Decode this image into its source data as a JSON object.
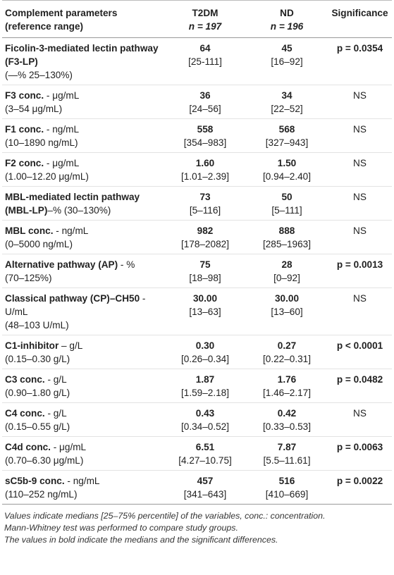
{
  "table": {
    "header": {
      "param": [
        "Complement parameters",
        "(reference range)"
      ],
      "t2dm": [
        "T2DM",
        "n = 197"
      ],
      "nd": [
        "ND",
        "n = 196"
      ],
      "sig": "Significance"
    },
    "rows": [
      {
        "name": "Ficolin-3-mediated lectin pathway (F3-LP)",
        "range": "(—% 25–130%)",
        "t2dm": "64",
        "t2dm_iqr": "[25-111]",
        "nd": "45",
        "nd_iqr": "[16–92]",
        "sig": "p = 0.0354"
      },
      {
        "name": "F3 conc.",
        "unit": " - μg/mL",
        "range": "(3–54 μg/mL)",
        "t2dm": "36",
        "t2dm_iqr": "[24–56]",
        "nd": "34",
        "nd_iqr": "[22–52]",
        "sig": "NS"
      },
      {
        "name": "F1 conc.",
        "unit": " - ng/mL",
        "range": "(10–1890 ng/mL)",
        "t2dm": "558",
        "t2dm_iqr": "[354–983]",
        "nd": "568",
        "nd_iqr": "[327–943]",
        "sig": "NS"
      },
      {
        "name": "F2 conc.",
        "unit": " - μg/mL",
        "range": "(1.00–12.20 μg/mL)",
        "t2dm": "1.60",
        "t2dm_iqr": "[1.01–2.39]",
        "nd": "1.50",
        "nd_iqr": "[0.94–2.40]",
        "sig": "NS"
      },
      {
        "name": "MBL-mediated lectin pathway (MBL-LP)",
        "unit": "–% (30–130%)",
        "t2dm": "73",
        "t2dm_iqr": "[5–116]",
        "nd": "50",
        "nd_iqr": "[5–111]",
        "sig": "NS"
      },
      {
        "name": "MBL conc.",
        "unit": " - ng/mL",
        "range": "(0–5000 ng/mL)",
        "t2dm": "982",
        "t2dm_iqr": "[178–2082]",
        "nd": "888",
        "nd_iqr": "[285–1963]",
        "sig": "NS"
      },
      {
        "name": "Alternative pathway (AP)",
        "unit": " - %",
        "range": "(70–125%)",
        "t2dm": "75",
        "t2dm_iqr": "[18–98]",
        "nd": "28",
        "nd_iqr": "[0–92]",
        "sig": "p = 0.0013"
      },
      {
        "name": "Classical pathway (CP)–CH50",
        "unit": " - U/mL",
        "range": "(48–103 U/mL)",
        "t2dm": "30.00",
        "t2dm_iqr": "[13–63]",
        "nd": "30.00",
        "nd_iqr": "[13–60]",
        "sig": "NS"
      },
      {
        "name": "C1-inhibitor",
        "unit": " – g/L",
        "range": "(0.15–0.30 g/L)",
        "t2dm": "0.30",
        "t2dm_iqr": "[0.26–0.34]",
        "nd": "0.27",
        "nd_iqr": "[0.22–0.31]",
        "sig": "p < 0.0001"
      },
      {
        "name": "C3 conc.",
        "unit": " - g/L",
        "range": "(0.90–1.80 g/L)",
        "t2dm": "1.87",
        "t2dm_iqr": "[1.59–2.18]",
        "nd": "1.76",
        "nd_iqr": "[1.46–2.17]",
        "sig": "p = 0.0482"
      },
      {
        "name": "C4 conc.",
        "unit": " - g/L",
        "range": "(0.15–0.55 g/L)",
        "t2dm": "0.43",
        "t2dm_iqr": "[0.34–0.52]",
        "nd": "0.42",
        "nd_iqr": "[0.33–0.53]",
        "sig": "NS"
      },
      {
        "name": "C4d conc.",
        "unit": " - μg/mL",
        "range": "(0.70–6.30 μg/mL)",
        "t2dm": "6.51",
        "t2dm_iqr": "[4.27–10.75]",
        "nd": "7.87",
        "nd_iqr": "[5.5–11.61]",
        "sig": "p = 0.0063"
      },
      {
        "name": "sC5b-9 conc.",
        "unit": " - ng/mL",
        "range": "(110–252 ng/mL)",
        "t2dm": "457",
        "t2dm_iqr": "[341–643]",
        "nd": "516",
        "nd_iqr": "[410–669]",
        "sig": "p = 0.0022"
      }
    ]
  },
  "notes": [
    "Values indicate medians [25–75% percentile] of the variables, conc.: concentration.",
    "Mann-Whitney test was performed to compare study groups.",
    "The values in bold indicate the medians and the significant differences."
  ]
}
